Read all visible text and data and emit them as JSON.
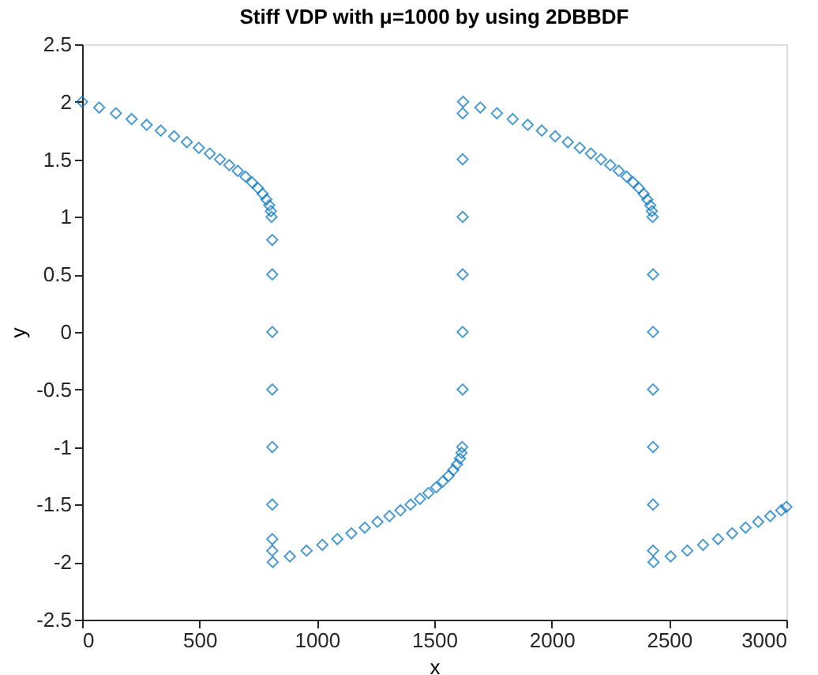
{
  "chart_data": {
    "type": "scatter",
    "title": "Stiff VDP with μ=1000 by using 2DBBDF",
    "xlabel": "x",
    "ylabel": "y",
    "marker": "diamond",
    "xlim": [
      0,
      3000
    ],
    "ylim": [
      -2.5,
      2.5
    ],
    "xticks": [
      0,
      500,
      1000,
      1500,
      2000,
      2500,
      3000
    ],
    "yticks": [
      -2.5,
      -2,
      -1.5,
      -1,
      -0.5,
      0,
      0.5,
      1,
      1.5,
      2,
      2.5
    ],
    "x": [
      0,
      73,
      144,
      211,
      275,
      335,
      392,
      446,
      497,
      544,
      587,
      627,
      663,
      696,
      724,
      749,
      769,
      785,
      797,
      804,
      807,
      810,
      810,
      810,
      810,
      810,
      810,
      810,
      810,
      812,
      885,
      956,
      1023,
      1087,
      1147,
      1204,
      1258,
      1309,
      1356,
      1399,
      1439,
      1475,
      1508,
      1536,
      1561,
      1581,
      1597,
      1609,
      1616,
      1619,
      1621,
      1621,
      1621,
      1621,
      1621,
      1621,
      1623,
      1696,
      1767,
      1834,
      1898,
      1958,
      2015,
      2069,
      2120,
      2167,
      2210,
      2250,
      2286,
      2319,
      2347,
      2372,
      2392,
      2408,
      2420,
      2427,
      2430,
      2432,
      2432,
      2432,
      2432,
      2432,
      2432,
      2434,
      2507,
      2578,
      2645,
      2709,
      2769,
      2826,
      2880,
      2931,
      2978,
      3000
    ],
    "series": [
      {
        "color": "#0072bd",
        "values": [
          2.0,
          1.95,
          1.9,
          1.85,
          1.8,
          1.75,
          1.7,
          1.65,
          1.6,
          1.55,
          1.5,
          1.45,
          1.4,
          1.35,
          1.3,
          1.25,
          1.2,
          1.15,
          1.1,
          1.05,
          1.0,
          0.8,
          0.5,
          0,
          -0.5,
          -1,
          -1.5,
          -1.8,
          -1.9,
          -2.0,
          -1.95,
          -1.9,
          -1.85,
          -1.8,
          -1.75,
          -1.7,
          -1.65,
          -1.6,
          -1.55,
          -1.5,
          -1.45,
          -1.4,
          -1.35,
          -1.3,
          -1.25,
          -1.2,
          -1.15,
          -1.1,
          -1.05,
          -1.0,
          -0.5,
          0,
          0.5,
          1,
          1.5,
          1.9,
          2.0,
          1.95,
          1.9,
          1.85,
          1.8,
          1.75,
          1.7,
          1.65,
          1.6,
          1.55,
          1.5,
          1.45,
          1.4,
          1.35,
          1.3,
          1.25,
          1.2,
          1.15,
          1.1,
          1.05,
          1.0,
          0.5,
          0,
          -0.5,
          -1,
          -1.5,
          -1.9,
          -2.0,
          -1.95,
          -1.9,
          -1.85,
          -1.8,
          -1.75,
          -1.7,
          -1.65,
          -1.6,
          -1.55,
          -1.52
        ]
      }
    ]
  }
}
